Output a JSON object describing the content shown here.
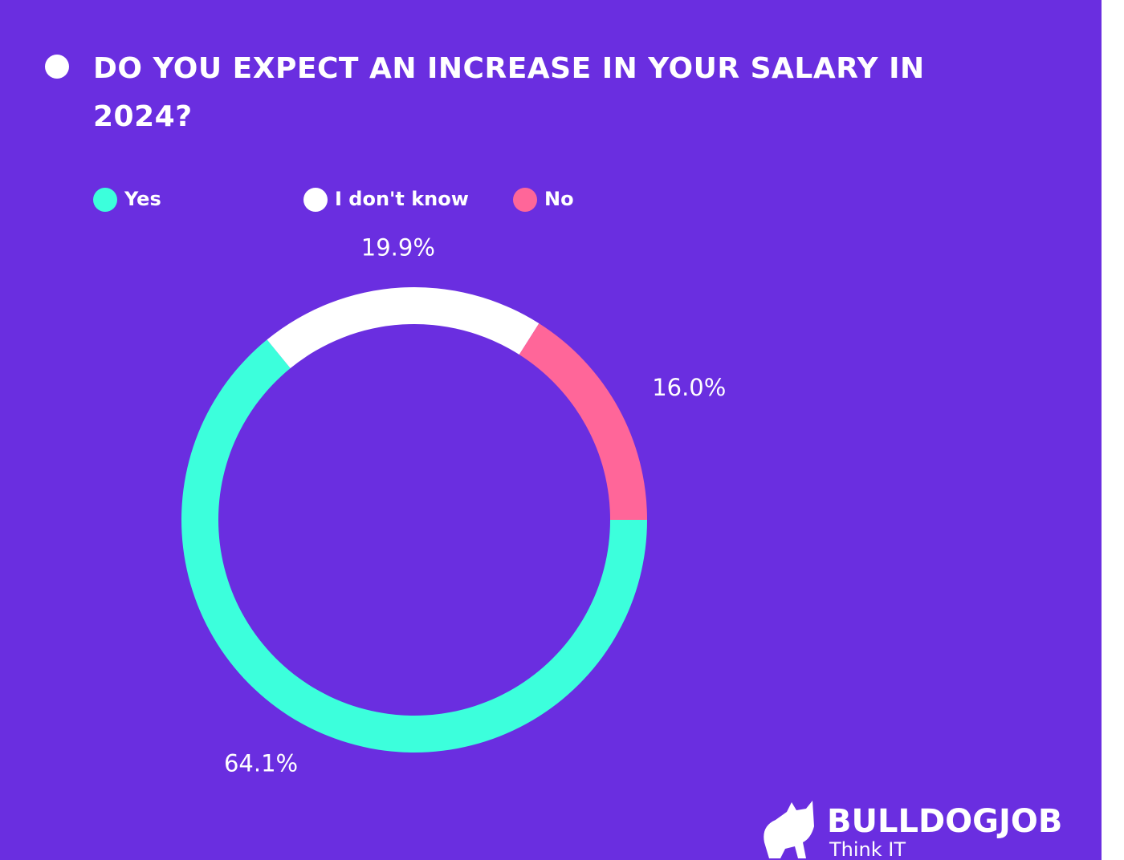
{
  "chart_data": {
    "type": "donut",
    "title": "DO YOU EXPECT AN INCREASE IN YOUR SALARY IN 2024?",
    "categories": [
      "Yes",
      "I don't know",
      "No"
    ],
    "values": [
      64.1,
      19.9,
      16.0
    ],
    "value_labels": [
      "64.1%",
      "19.9%",
      "16.0%"
    ],
    "colors": [
      "#3cffdc",
      "#ffffff",
      "#ff6699"
    ],
    "legend": "top"
  },
  "logo": {
    "name": "BULLDOGJOB",
    "tagline": "Think IT"
  }
}
